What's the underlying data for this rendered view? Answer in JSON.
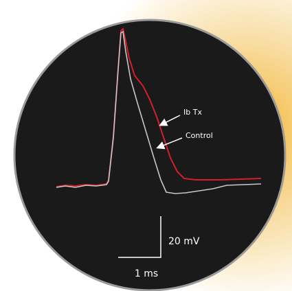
{
  "labels": {
    "trace_1": "Ib Tx",
    "trace_2": "Control"
  },
  "scale_bar": {
    "vertical": "20 mV",
    "horizontal": "1 ms"
  }
}
